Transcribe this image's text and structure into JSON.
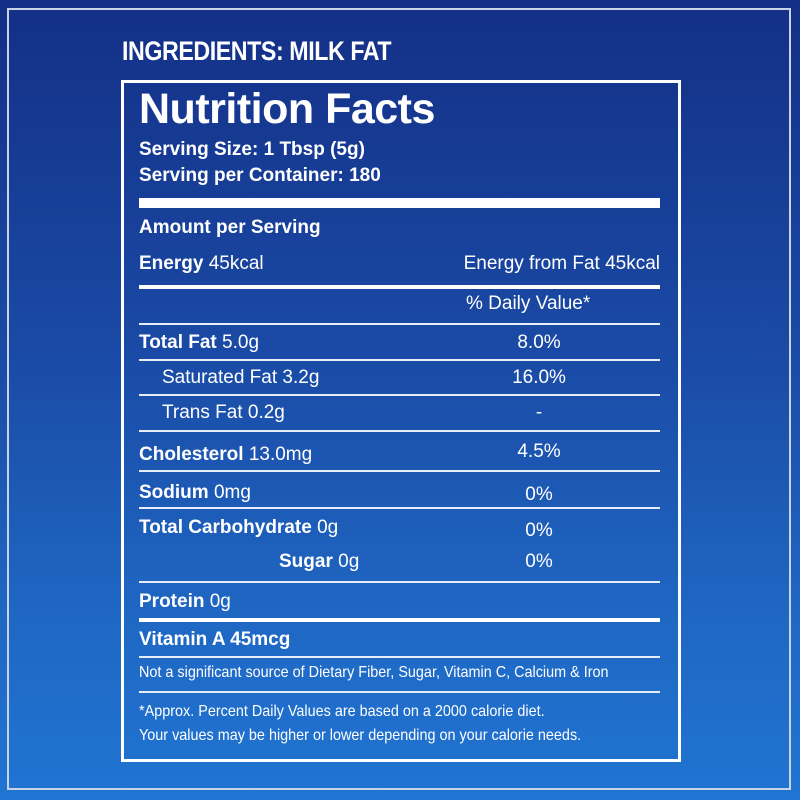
{
  "ingredients": "INGREDIENTS: MILK FAT",
  "label": {
    "title": "Nutrition Facts",
    "serving_size": "Serving Size: 1 Tbsp (5g)",
    "serving_per_container": "Serving per Container: 180",
    "amount_per_serving": "Amount per Serving",
    "energy_label": "Energy",
    "energy_value": "45kcal",
    "energy_from_fat": "Energy from Fat 45kcal",
    "daily_value_header": "% Daily Value*",
    "rows": [
      {
        "name": "Total Fat",
        "amount": "5.0g",
        "dv": "8.0%"
      },
      {
        "name": "Saturated Fat",
        "amount": "3.2g",
        "dv": "16.0%"
      },
      {
        "name": "Trans Fat",
        "amount": "0.2g",
        "dv": "-"
      },
      {
        "name": "Cholesterol",
        "amount": "13.0mg",
        "dv": "4.5%"
      },
      {
        "name": "Sodium",
        "amount": "0mg",
        "dv": "0%"
      },
      {
        "name": "Total Carbohydrate",
        "amount": "0g",
        "dv": "0%"
      },
      {
        "name": "Sugar",
        "amount": "0g",
        "dv": "0%"
      },
      {
        "name": "Protein",
        "amount": "0g",
        "dv": ""
      }
    ],
    "vitamin": "Vitamin A 45mcg",
    "not_significant": "Not a significant source of Dietary Fiber, Sugar, Vitamin C, Calcium & Iron",
    "footnote_1": "*Approx. Percent Daily Values are based on a 2000 calorie diet.",
    "footnote_2": "Your values may be higher or lower depending on your calorie needs."
  },
  "colors": {
    "background_top": "#142f86",
    "background_bottom": "#2074d2",
    "text": "#ffffff"
  }
}
